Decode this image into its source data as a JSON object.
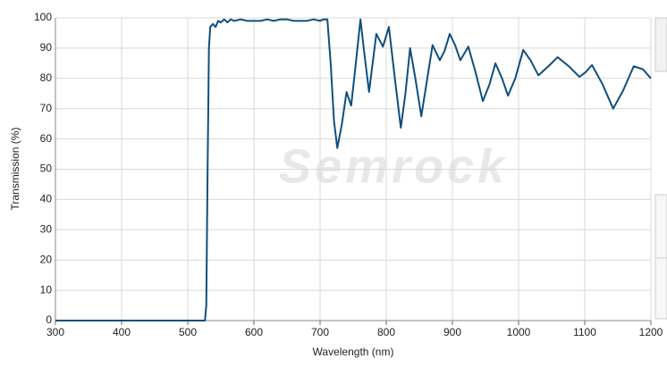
{
  "chart_data": {
    "type": "line",
    "x_label": "Wavelength (nm)",
    "y_label": "Transmission (%)",
    "watermark": "Semrock",
    "xlim": [
      300,
      1200
    ],
    "xticks": [
      300,
      400,
      500,
      600,
      700,
      800,
      900,
      1000,
      1100,
      1200
    ],
    "ylim": [
      0,
      100
    ],
    "yticks": [
      0,
      10,
      20,
      30,
      40,
      50,
      60,
      70,
      80,
      90,
      100
    ],
    "grid": true,
    "series": [
      {
        "name": "Transmission",
        "color": "#0f4f7e",
        "x": [
          300,
          526,
          528,
          530,
          532,
          534,
          538,
          542,
          546,
          550,
          555,
          560,
          565,
          570,
          580,
          590,
          600,
          610,
          620,
          630,
          640,
          650,
          660,
          670,
          680,
          690,
          700,
          705,
          711,
          716,
          721,
          726,
          733,
          740,
          747,
          754,
          761,
          767,
          774,
          780,
          785,
          795,
          804,
          813,
          822,
          829,
          836,
          844,
          853,
          862,
          870,
          881,
          888,
          896,
          904,
          912,
          924,
          935,
          946,
          956,
          965,
          975,
          984,
          995,
          1007,
          1018,
          1030,
          1045,
          1059,
          1076,
          1092,
          1101,
          1111,
          1127,
          1143,
          1158,
          1174,
          1188,
          1200
        ],
        "values": [
          0,
          0,
          5,
          50,
          90,
          97,
          98,
          97,
          99,
          98.5,
          99.5,
          98.5,
          99.5,
          99,
          99.5,
          99,
          99,
          99,
          99.5,
          99,
          99.5,
          99.5,
          99,
          99,
          99,
          99.5,
          99,
          99.5,
          99.5,
          85,
          66,
          57,
          65,
          75.5,
          71,
          85,
          99.5,
          88,
          75.5,
          86,
          94.7,
          90.5,
          97,
          80,
          63.7,
          75,
          90,
          80,
          67.5,
          80,
          91,
          86,
          89,
          94.7,
          91,
          86,
          90.5,
          82,
          72.5,
          78,
          85,
          80,
          74.3,
          80,
          89.4,
          86,
          81,
          84,
          87,
          84,
          80.5,
          82,
          84.4,
          78,
          70,
          76,
          84,
          83,
          80
        ]
      }
    ]
  }
}
